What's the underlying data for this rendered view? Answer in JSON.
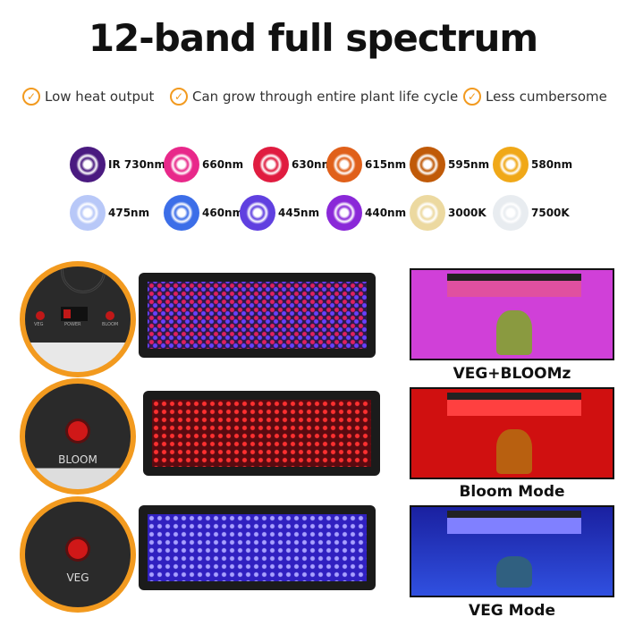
{
  "title": "12-band full spectrum",
  "features": [
    "Low heat output",
    "Can grow through entire plant life cycle",
    "Less cumbersome"
  ],
  "accent": "#f29a1f",
  "bands_row1": [
    {
      "label": "IR 730nm",
      "color": "#4a1a80"
    },
    {
      "label": "660nm",
      "color": "#e8288a"
    },
    {
      "label": "630nm",
      "color": "#e01c40"
    },
    {
      "label": "615nm",
      "color": "#e0601a"
    },
    {
      "label": "595nm",
      "color": "#c05a08"
    },
    {
      "label": "580nm",
      "color": "#f0a818"
    }
  ],
  "bands_row2": [
    {
      "label": "475nm",
      "color": "#b8c8f8"
    },
    {
      "label": "460nm",
      "color": "#3c6ee8"
    },
    {
      "label": "445nm",
      "color": "#6040e0"
    },
    {
      "label": "440nm",
      "color": "#8a28d8"
    },
    {
      "label": "3000K",
      "color": "#ecd9a0"
    },
    {
      "label": "7500K",
      "color": "#e8ecf0"
    }
  ],
  "switch_panel_labels": [
    "VEG",
    "POWER",
    "BLOOM"
  ],
  "switches": [
    "BLOOM",
    "VEG"
  ],
  "modes": [
    "VEG+BLOOMz",
    "Bloom Mode",
    "VEG Mode"
  ]
}
